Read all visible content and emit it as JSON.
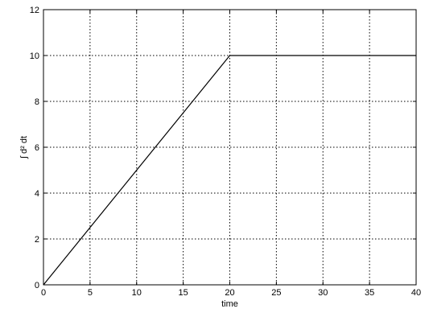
{
  "chart_data": {
    "type": "line",
    "title": "",
    "xlabel": "time",
    "ylabel": "∫ d² dt",
    "xlim": [
      0,
      40
    ],
    "ylim": [
      0,
      12
    ],
    "xticks": [
      0,
      5,
      10,
      15,
      20,
      25,
      30,
      35,
      40
    ],
    "yticks": [
      0,
      2,
      4,
      6,
      8,
      10,
      12
    ],
    "grid": true,
    "series": [
      {
        "x": [
          0,
          0.5,
          1,
          1.5,
          2,
          2.5,
          3,
          3.5,
          4,
          4.5,
          5,
          5.5,
          6,
          6.5,
          7,
          7.5,
          8,
          8.5,
          9,
          9.5,
          10,
          10.5,
          11,
          11.5,
          12,
          12.5,
          13,
          13.5,
          14,
          14.5,
          15,
          15.5,
          16,
          16.5,
          17,
          17.5,
          18,
          18.5,
          19,
          19.5,
          20,
          25,
          30,
          35,
          40
        ],
        "values": [
          0,
          0.25,
          0.5,
          0.75,
          1,
          1.25,
          1.5,
          1.75,
          2,
          2.25,
          2.5,
          2.75,
          3,
          3.25,
          3.5,
          3.75,
          4,
          4.25,
          4.5,
          4.75,
          5,
          5.25,
          5.5,
          5.75,
          6,
          6.25,
          6.5,
          6.75,
          7,
          7.25,
          7.5,
          7.75,
          8,
          8.25,
          8.5,
          8.75,
          9,
          9.25,
          9.5,
          9.75,
          10,
          10,
          10,
          10,
          10
        ]
      }
    ]
  }
}
